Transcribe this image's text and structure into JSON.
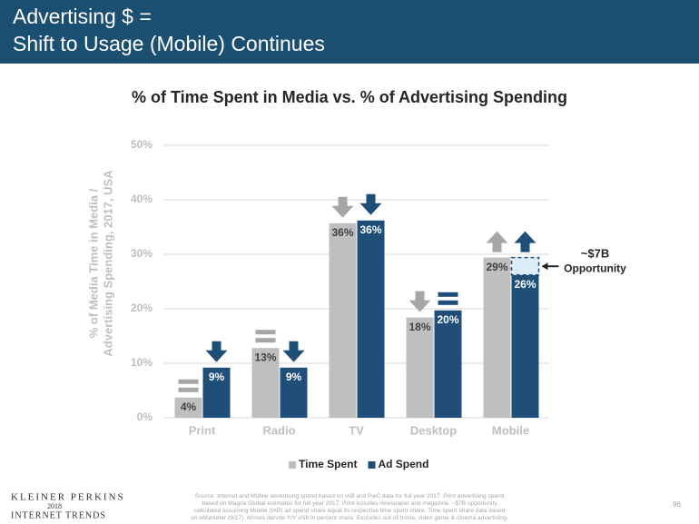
{
  "header": {
    "title_lines": [
      "Advertising $ =",
      "Shift to Usage (Mobile) Continues"
    ]
  },
  "chart_data": {
    "type": "bar",
    "title": "% of Time Spent in Media vs. % of Advertising Spending",
    "y_label": [
      "% of Media Time in Media /",
      "Advertising Spending, 2017, USA"
    ],
    "categories": [
      "Print",
      "Radio",
      "TV",
      "Desktop",
      "Mobile"
    ],
    "series": [
      {
        "name": "Time Spent",
        "color": "#bfbfbf",
        "arrow_color": "#a6a6a6",
        "label_color": "#404040",
        "values": [
          3.7,
          12.8,
          35.7,
          18.4,
          29.4
        ],
        "value_labels": [
          "4%",
          "13%",
          "36%",
          "18%",
          "29%"
        ],
        "trends": [
          "equal",
          "equal",
          "down",
          "down",
          "up"
        ]
      },
      {
        "name": "Ad Spend",
        "color": "#1f4e79",
        "arrow_color": "#1f4e79",
        "label_color": "#ffffff",
        "values": [
          9.2,
          9.2,
          36.2,
          19.7,
          26.2
        ],
        "value_labels": [
          "9%",
          "9%",
          "36%",
          "20%",
          "26%"
        ],
        "trends": [
          "down",
          "down",
          "down",
          "equal",
          "up"
        ]
      }
    ],
    "ylim": [
      0,
      50
    ],
    "yticks": [
      {
        "value": 0,
        "label": "0%"
      },
      {
        "value": 10,
        "label": "10%"
      },
      {
        "value": 20,
        "label": "20%"
      },
      {
        "value": 30,
        "label": "30%"
      },
      {
        "value": 40,
        "label": "40%"
      },
      {
        "value": 50,
        "label": "50%"
      }
    ],
    "grid": true,
    "legend": "bottom",
    "annotation": {
      "lines": [
        "~$7B",
        "Opportunity"
      ],
      "category_index": 4
    }
  },
  "footer": {
    "brand_lines": [
      "KLEINER PERKINS",
      "2018",
      "INTERNET TRENDS"
    ],
    "source_lines": [
      "Source: Internet and Mobile advertising spend based on IAB and PwC data for full year 2017. Print advertising spend",
      "based on Magna Global estimates for full year 2017. Print includes newspaper and magazine. ~$7B opportunity",
      "calculated assuming Mobile (IAB) ad spend share equal its respective time spent share. Time spent share data based",
      "on eMarketer (9/17). Arrows denote Y/Y shift in percent share. Excludes out-of-home, video game & cinema advertising."
    ],
    "page": "96"
  }
}
